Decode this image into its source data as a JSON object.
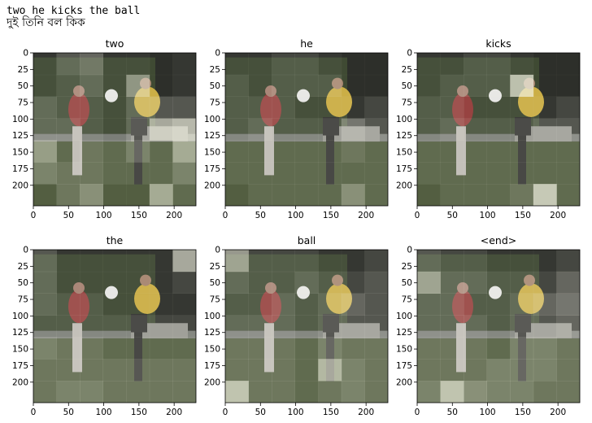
{
  "caption": {
    "english": "two he kicks the ball",
    "bengali": "দুই তিনি বল কিক"
  },
  "colors": {
    "background": "#ffffff",
    "scene_sky": "#1b1d1a",
    "scene_tree": "#2e3a24",
    "scene_grass": "#3d4a2b",
    "player_red": "#8b2b2b",
    "player_yellow": "#c8a838",
    "highlight": "#f2f2e2"
  },
  "chart_data": [
    {
      "type": "heatmap",
      "title": "two",
      "xticks": [
        0,
        50,
        100,
        150,
        200
      ],
      "yticks": [
        0,
        25,
        50,
        75,
        100,
        125,
        150,
        175,
        200
      ],
      "xlim": [
        0,
        231
      ],
      "ylim": [
        0,
        231
      ],
      "grid": "7x7",
      "attention": [
        [
          0.1,
          0.3,
          0.4,
          0.1,
          0.1,
          0.05,
          0.1
        ],
        [
          0.1,
          0.2,
          0.3,
          0.1,
          0.6,
          0.05,
          0.1
        ],
        [
          0.3,
          0.2,
          0.2,
          0.1,
          0.3,
          0.3,
          0.3
        ],
        [
          0.3,
          0.3,
          0.2,
          0.1,
          0.3,
          0.8,
          0.9
        ],
        [
          0.6,
          0.2,
          0.3,
          0.2,
          0.4,
          0.2,
          0.7
        ],
        [
          0.4,
          0.3,
          0.3,
          0.2,
          0.2,
          0.2,
          0.4
        ],
        [
          0.1,
          0.3,
          0.5,
          0.1,
          0.1,
          0.7,
          0.2
        ]
      ]
    },
    {
      "type": "heatmap",
      "title": "he",
      "xticks": [
        0,
        50,
        100,
        150,
        200
      ],
      "yticks": [
        0,
        25,
        50,
        75,
        100,
        125,
        150,
        175,
        200
      ],
      "xlim": [
        0,
        231
      ],
      "ylim": [
        0,
        231
      ],
      "grid": "7x7",
      "attention": [
        [
          0.1,
          0.1,
          0.2,
          0.2,
          0.1,
          0.05,
          0.05
        ],
        [
          0.2,
          0.1,
          0.2,
          0.2,
          0.2,
          0.05,
          0.05
        ],
        [
          0.2,
          0.2,
          0.2,
          0.1,
          0.1,
          0.1,
          0.2
        ],
        [
          0.2,
          0.3,
          0.2,
          0.2,
          0.2,
          0.5,
          0.3
        ],
        [
          0.2,
          0.2,
          0.2,
          0.2,
          0.2,
          0.3,
          0.2
        ],
        [
          0.2,
          0.2,
          0.2,
          0.2,
          0.2,
          0.2,
          0.2
        ],
        [
          0.1,
          0.2,
          0.2,
          0.2,
          0.2,
          0.5,
          0.2
        ]
      ]
    },
    {
      "type": "heatmap",
      "title": "kicks",
      "xticks": [
        0,
        50,
        100,
        150,
        200
      ],
      "yticks": [
        0,
        25,
        50,
        75,
        100,
        125,
        150,
        175,
        200
      ],
      "xlim": [
        0,
        231
      ],
      "ylim": [
        0,
        231
      ],
      "grid": "7x7",
      "attention": [
        [
          0.1,
          0.1,
          0.2,
          0.2,
          0.1,
          0.05,
          0.05
        ],
        [
          0.1,
          0.2,
          0.2,
          0.2,
          0.9,
          0.05,
          0.05
        ],
        [
          0.2,
          0.2,
          0.1,
          0.1,
          0.1,
          0.1,
          0.2
        ],
        [
          0.2,
          0.3,
          0.2,
          0.2,
          0.2,
          0.3,
          0.3
        ],
        [
          0.2,
          0.2,
          0.2,
          0.2,
          0.2,
          0.2,
          0.2
        ],
        [
          0.2,
          0.2,
          0.2,
          0.2,
          0.2,
          0.2,
          0.2
        ],
        [
          0.1,
          0.2,
          0.2,
          0.2,
          0.3,
          0.95,
          0.2
        ]
      ]
    },
    {
      "type": "heatmap",
      "title": "the",
      "xticks": [
        0,
        50,
        100,
        150,
        200
      ],
      "yticks": [
        0,
        25,
        50,
        75,
        100,
        125,
        150,
        175,
        200
      ],
      "xlim": [
        0,
        231
      ],
      "ylim": [
        0,
        231
      ],
      "grid": "7x7",
      "attention": [
        [
          0.3,
          0.1,
          0.1,
          0.1,
          0.1,
          0.1,
          0.8
        ],
        [
          0.3,
          0.1,
          0.1,
          0.1,
          0.1,
          0.1,
          0.2
        ],
        [
          0.3,
          0.2,
          0.2,
          0.1,
          0.1,
          0.1,
          0.1
        ],
        [
          0.2,
          0.2,
          0.2,
          0.2,
          0.2,
          0.2,
          0.2
        ],
        [
          0.4,
          0.3,
          0.3,
          0.2,
          0.2,
          0.2,
          0.2
        ],
        [
          0.3,
          0.3,
          0.3,
          0.3,
          0.3,
          0.3,
          0.3
        ],
        [
          0.3,
          0.4,
          0.4,
          0.3,
          0.3,
          0.3,
          0.3
        ]
      ]
    },
    {
      "type": "heatmap",
      "title": "ball",
      "xticks": [
        0,
        50,
        100,
        150,
        200
      ],
      "yticks": [
        0,
        25,
        50,
        75,
        100,
        125,
        150,
        175,
        200
      ],
      "xlim": [
        0,
        231
      ],
      "ylim": [
        0,
        231
      ],
      "grid": "7x7",
      "attention": [
        [
          0.7,
          0.2,
          0.2,
          0.2,
          0.1,
          0.1,
          0.2
        ],
        [
          0.3,
          0.2,
          0.2,
          0.3,
          0.2,
          0.2,
          0.3
        ],
        [
          0.2,
          0.2,
          0.3,
          0.2,
          0.3,
          0.4,
          0.3
        ],
        [
          0.3,
          0.3,
          0.3,
          0.2,
          0.3,
          0.3,
          0.3
        ],
        [
          0.3,
          0.3,
          0.3,
          0.2,
          0.4,
          0.3,
          0.3
        ],
        [
          0.3,
          0.3,
          0.3,
          0.2,
          0.8,
          0.4,
          0.3
        ],
        [
          0.9,
          0.3,
          0.3,
          0.2,
          0.3,
          0.4,
          0.3
        ]
      ]
    },
    {
      "type": "heatmap",
      "title": "<end>",
      "xticks": [
        0,
        50,
        100,
        150,
        200
      ],
      "yticks": [
        0,
        25,
        50,
        75,
        100,
        125,
        150,
        175,
        200
      ],
      "xlim": [
        0,
        231
      ],
      "ylim": [
        0,
        231
      ],
      "grid": "7x7",
      "attention": [
        [
          0.3,
          0.2,
          0.2,
          0.1,
          0.1,
          0.1,
          0.2
        ],
        [
          0.7,
          0.3,
          0.3,
          0.2,
          0.2,
          0.2,
          0.4
        ],
        [
          0.3,
          0.3,
          0.2,
          0.2,
          0.3,
          0.4,
          0.5
        ],
        [
          0.3,
          0.3,
          0.3,
          0.2,
          0.3,
          0.3,
          0.4
        ],
        [
          0.3,
          0.3,
          0.3,
          0.2,
          0.4,
          0.4,
          0.3
        ],
        [
          0.3,
          0.3,
          0.3,
          0.4,
          0.4,
          0.4,
          0.3
        ],
        [
          0.4,
          0.9,
          0.5,
          0.4,
          0.4,
          0.3,
          0.3
        ]
      ]
    }
  ]
}
